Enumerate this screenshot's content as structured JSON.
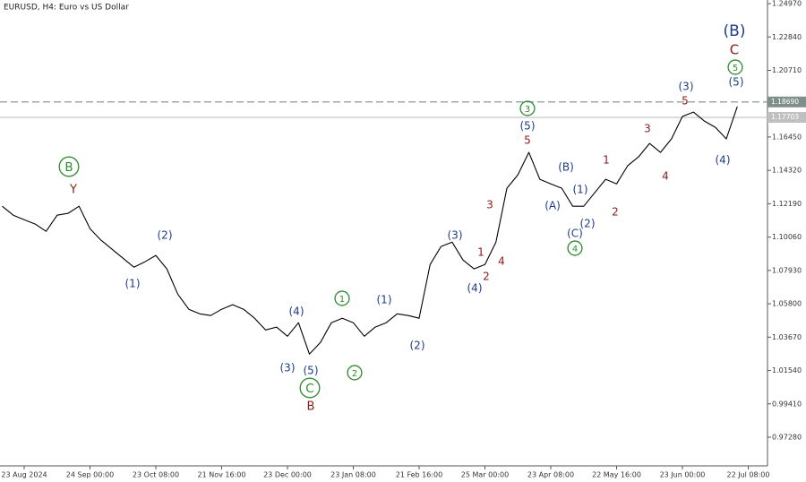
{
  "chart_data": {
    "type": "line",
    "title": "EURUSD, H4: Euro vs US Dollar",
    "categories": [
      null,
      null,
      "23 Aug 2024",
      null,
      null,
      null,
      null,
      null,
      "24 Sep 00:00",
      null,
      null,
      null,
      null,
      null,
      "23 Oct 08:00",
      null,
      null,
      null,
      null,
      null,
      "21 Nov 16:00",
      null,
      null,
      null,
      null,
      null,
      "23 Dec 00:00",
      null,
      null,
      null,
      null,
      null,
      "23 Jan 08:00",
      null,
      null,
      null,
      null,
      null,
      "21 Feb 16:00",
      null,
      null,
      null,
      null,
      null,
      "25 Mar 00:00",
      null,
      null,
      null,
      null,
      null,
      "23 Apr 08:00",
      null,
      null,
      null,
      null,
      null,
      "22 May 16:00",
      null,
      null,
      null,
      null,
      null,
      "23 Jun 00:00",
      null,
      null,
      null,
      null,
      null,
      "22 Jul 08:00"
    ],
    "series": [
      {
        "name": "EURUSD",
        "color": "#000000",
        "values": [
          1.1203,
          1.1146,
          1.1117,
          1.1089,
          1.1043,
          1.1146,
          1.1158,
          1.1203,
          1.106,
          1.0986,
          1.0929,
          1.0871,
          1.0814,
          1.0848,
          1.0889,
          1.0803,
          1.0642,
          1.0545,
          1.0516,
          1.0505,
          1.0545,
          1.0574,
          1.0545,
          1.0488,
          1.0413,
          1.0431,
          1.0373,
          1.0459,
          1.0259,
          1.0333,
          1.0459,
          1.0488,
          1.0459,
          1.0373,
          1.0431,
          1.0459,
          1.0516,
          1.0505,
          1.0488,
          1.0831,
          1.0946,
          1.0974,
          1.086,
          1.0803,
          1.0831,
          1.0974,
          1.1318,
          1.1404,
          1.1547,
          1.1375,
          1.1346,
          1.1318,
          1.1203,
          1.1203,
          1.1289,
          1.1375,
          1.1346,
          1.1461,
          1.1518,
          1.1604,
          1.1547,
          1.1633,
          1.1776,
          1.1804,
          1.1747,
          1.1707,
          1.1633,
          1.184,
          null
        ]
      }
    ],
    "ylim": [
      0.9545,
      1.252
    ],
    "yticks": [
      {
        "value": 0.9728,
        "label": "0.97280"
      },
      {
        "value": 0.9941,
        "label": "0.99410"
      },
      {
        "value": 1.0154,
        "label": "1.01540"
      },
      {
        "value": 1.0367,
        "label": "1.03670"
      },
      {
        "value": 1.058,
        "label": "1.05800"
      },
      {
        "value": 1.0793,
        "label": "1.07930"
      },
      {
        "value": 1.1006,
        "label": "1.10060"
      },
      {
        "value": 1.1219,
        "label": "1.12190"
      },
      {
        "value": 1.1432,
        "label": "1.14320"
      },
      {
        "value": 1.1645,
        "label": "1.16450"
      },
      {
        "value": 1.2071,
        "label": "1.20710"
      },
      {
        "value": 1.2284,
        "label": "1.22840"
      },
      {
        "value": 1.2497,
        "label": "1.24970"
      }
    ],
    "levels": [
      {
        "value": 1.1869,
        "label": "1.18690",
        "style": "dashed",
        "color": "#7f8f8a"
      },
      {
        "value": 1.17703,
        "label": "1.17703",
        "style": "solid",
        "color": "#c0c0c0"
      }
    ],
    "annotations": [
      {
        "text": "B",
        "color": "#2e8b2e",
        "circled": true
      },
      {
        "text": "Y",
        "color": "#8b1a1a"
      },
      {
        "text": "(2)",
        "color": "#1f3c8a"
      },
      {
        "text": "(1)",
        "color": "#1f3c8a"
      },
      {
        "text": "(4)",
        "color": "#1f3c8a"
      },
      {
        "text": "(3)",
        "color": "#1f3c8a"
      },
      {
        "text": "(5)",
        "color": "#1f3c8a"
      },
      {
        "text": "C",
        "color": "#2e8b2e",
        "circled": true
      },
      {
        "text": "B",
        "color": "#8b1a1a"
      },
      {
        "text": "1",
        "color": "#2e8b2e",
        "circled": true
      },
      {
        "text": "2",
        "color": "#2e8b2e",
        "circled": true
      },
      {
        "text": "(1)",
        "color": "#1f3c8a"
      },
      {
        "text": "(2)",
        "color": "#1f3c8a"
      },
      {
        "text": "(3)",
        "color": "#1f3c8a"
      },
      {
        "text": "(4)",
        "color": "#1f3c8a"
      },
      {
        "text": "1",
        "color": "#8b1a1a"
      },
      {
        "text": "2",
        "color": "#8b1a1a"
      },
      {
        "text": "3",
        "color": "#8b1a1a"
      },
      {
        "text": "4",
        "color": "#8b1a1a"
      },
      {
        "text": "3",
        "color": "#2e8b2e",
        "circled": true
      },
      {
        "text": "(5)",
        "color": "#1f3c8a"
      },
      {
        "text": "5",
        "color": "#8b1a1a"
      },
      {
        "text": "(B)",
        "color": "#1f3c8a"
      },
      {
        "text": "(A)",
        "color": "#1f3c8a"
      },
      {
        "text": "(1)",
        "color": "#1f3c8a"
      },
      {
        "text": "(2)",
        "color": "#1f3c8a"
      },
      {
        "text": "(C)",
        "color": "#1f3c8a"
      },
      {
        "text": "4",
        "color": "#2e8b2e",
        "circled": true
      },
      {
        "text": "1",
        "color": "#8b1a1a"
      },
      {
        "text": "2",
        "color": "#8b1a1a"
      },
      {
        "text": "3",
        "color": "#8b1a1a"
      },
      {
        "text": "4",
        "color": "#8b1a1a"
      },
      {
        "text": "(3)",
        "color": "#1f3c8a"
      },
      {
        "text": "5",
        "color": "#8b1a1a"
      },
      {
        "text": "(4)",
        "color": "#1f3c8a"
      },
      {
        "text": "(B)",
        "color": "#1f3c8a"
      },
      {
        "text": "C",
        "color": "#8b1a1a"
      },
      {
        "text": "5",
        "color": "#2e8b2e",
        "circled": true
      },
      {
        "text": "(5)",
        "color": "#1f3c8a"
      }
    ]
  }
}
